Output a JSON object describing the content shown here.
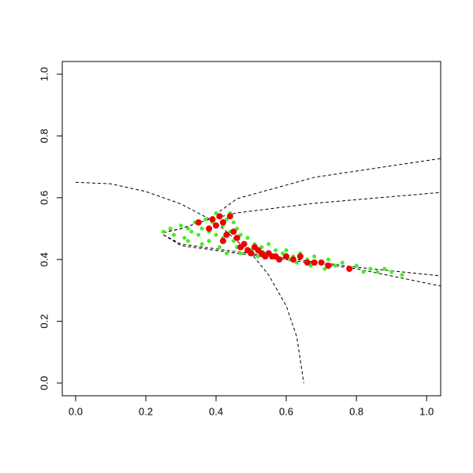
{
  "chart_data": {
    "type": "scatter",
    "xlim": [
      -0.038,
      1.04
    ],
    "ylim": [
      -0.041,
      1.041
    ],
    "xticks": [
      {
        "value": 0,
        "label": "0.0"
      },
      0.2,
      0.4,
      0.6,
      0.8,
      {
        "value": 1,
        "label": "1.0"
      }
    ],
    "yticks": [
      {
        "value": 0,
        "label": "0.0"
      },
      0.2,
      0.4,
      0.6,
      0.8,
      {
        "value": 1,
        "label": "1.0"
      }
    ],
    "series": [
      {
        "mode": "line",
        "dashed": true,
        "color": "#000000",
        "x": [
          0,
          0.1,
          0.2,
          0.3,
          0.4,
          0.5,
          0.55,
          0.6,
          0.63,
          0.65
        ],
        "values": [
          0.65,
          0.645,
          0.62,
          0.58,
          0.52,
          0.42,
          0.35,
          0.25,
          0.15,
          0
        ]
      },
      {
        "mode": "line",
        "dashed": true,
        "color": "#000000",
        "x": [
          0.25,
          0.3,
          0.38,
          0.46,
          0.68,
          1.04
        ],
        "values": [
          0.487,
          0.5,
          0.53,
          0.597,
          0.666,
          0.727
        ]
      },
      {
        "mode": "line",
        "dashed": true,
        "color": "#000000",
        "x": [
          0.25,
          0.3,
          0.38,
          0.46,
          0.68,
          1.04
        ],
        "values": [
          0.487,
          0.5,
          0.53,
          0.551,
          0.582,
          0.617
        ]
      },
      {
        "mode": "line",
        "dashed": true,
        "color": "#000000",
        "x": [
          0.25,
          0.3,
          0.46,
          0.8,
          1.04
        ],
        "values": [
          0.48,
          0.45,
          0.425,
          0.375,
          0.347
        ]
      },
      {
        "mode": "line",
        "dashed": true,
        "color": "#000000",
        "x": [
          0.25,
          0.3,
          0.46,
          0.8,
          1.04
        ],
        "values": [
          0.48,
          0.445,
          0.42,
          0.37,
          0.314
        ]
      },
      {
        "mode": "points",
        "color": "#44ee22",
        "size": 2.5,
        "x": [
          0.25,
          0.27,
          0.28,
          0.3,
          0.31,
          0.32,
          0.33,
          0.34,
          0.35,
          0.36,
          0.36,
          0.37,
          0.38,
          0.38,
          0.39,
          0.4,
          0.4,
          0.41,
          0.42,
          0.42,
          0.43,
          0.43,
          0.44,
          0.45,
          0.45,
          0.46,
          0.47,
          0.47,
          0.48,
          0.49,
          0.5,
          0.51,
          0.52,
          0.53,
          0.54,
          0.55,
          0.56,
          0.57,
          0.58,
          0.59,
          0.6,
          0.61,
          0.62,
          0.63,
          0.64,
          0.66,
          0.67,
          0.68,
          0.7,
          0.71,
          0.72,
          0.74,
          0.76,
          0.78,
          0.8,
          0.82,
          0.84,
          0.86,
          0.88,
          0.9,
          0.93,
          0.32,
          0.44,
          0.46
        ],
        "values": [
          0.49,
          0.5,
          0.48,
          0.51,
          0.47,
          0.5,
          0.49,
          0.52,
          0.48,
          0.5,
          0.45,
          0.53,
          0.49,
          0.46,
          0.52,
          0.55,
          0.48,
          0.44,
          0.51,
          0.47,
          0.53,
          0.42,
          0.49,
          0.46,
          0.52,
          0.44,
          0.48,
          0.42,
          0.45,
          0.47,
          0.43,
          0.45,
          0.41,
          0.44,
          0.42,
          0.45,
          0.41,
          0.43,
          0.4,
          0.42,
          0.43,
          0.4,
          0.41,
          0.39,
          0.42,
          0.4,
          0.38,
          0.41,
          0.39,
          0.37,
          0.4,
          0.38,
          0.39,
          0.37,
          0.38,
          0.36,
          0.37,
          0.36,
          0.37,
          0.36,
          0.35,
          0.46,
          0.55,
          0.5
        ]
      },
      {
        "mode": "points",
        "color": "#ee0000",
        "size": 4,
        "x": [
          0.35,
          0.38,
          0.39,
          0.4,
          0.41,
          0.42,
          0.43,
          0.44,
          0.42,
          0.45,
          0.46,
          0.47,
          0.48,
          0.49,
          0.5,
          0.51,
          0.52,
          0.53,
          0.54,
          0.55,
          0.56,
          0.57,
          0.58,
          0.6,
          0.62,
          0.64,
          0.66,
          0.68,
          0.7,
          0.72,
          0.78
        ],
        "values": [
          0.52,
          0.5,
          0.53,
          0.51,
          0.54,
          0.52,
          0.48,
          0.54,
          0.46,
          0.49,
          0.47,
          0.44,
          0.45,
          0.43,
          0.42,
          0.44,
          0.43,
          0.42,
          0.41,
          0.42,
          0.41,
          0.41,
          0.4,
          0.41,
          0.4,
          0.41,
          0.39,
          0.39,
          0.39,
          0.38,
          0.37
        ]
      }
    ]
  }
}
